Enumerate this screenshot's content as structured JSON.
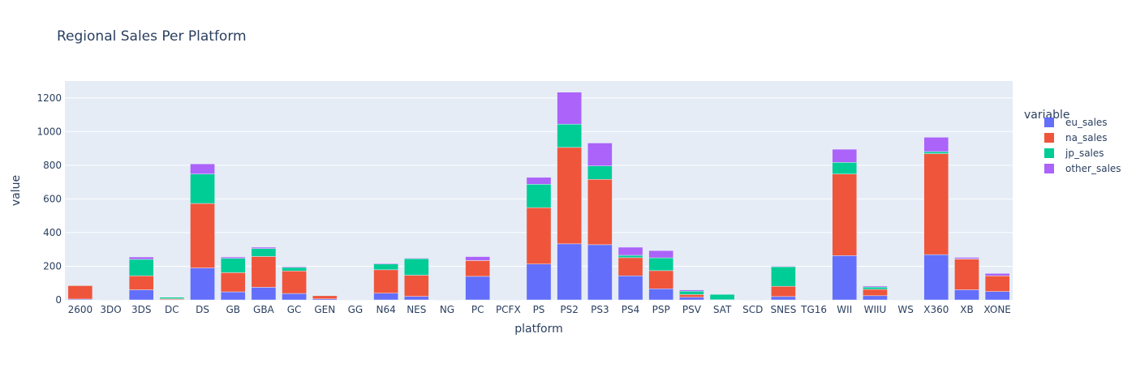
{
  "chart_data": {
    "type": "bar",
    "barmode": "stack",
    "title": "Regional Sales Per Platform",
    "xlabel": "platform",
    "ylabel": "value",
    "ylim": [
      0,
      1300
    ],
    "yticks": [
      0,
      200,
      400,
      600,
      800,
      1000,
      1200
    ],
    "grid": true,
    "legend": {
      "title": "variable",
      "position": "right"
    },
    "categories": [
      "2600",
      "3DO",
      "3DS",
      "DC",
      "DS",
      "GB",
      "GBA",
      "GC",
      "GEN",
      "GG",
      "N64",
      "NES",
      "NG",
      "PC",
      "PCFX",
      "PS",
      "PS2",
      "PS3",
      "PS4",
      "PSP",
      "PSV",
      "SAT",
      "SCD",
      "SNES",
      "TG16",
      "WII",
      "WIIU",
      "WS",
      "X360",
      "XB",
      "XONE"
    ],
    "series": [
      {
        "name": "eu_sales",
        "color": "#636efa",
        "values": [
          5,
          0.1,
          60,
          1.7,
          190,
          48,
          75,
          38,
          6,
          0,
          40,
          21,
          0.1,
          140,
          0,
          213,
          333,
          328,
          143,
          66,
          16,
          0.5,
          0.4,
          20,
          0,
          263,
          25,
          0,
          269,
          60,
          50
        ]
      },
      {
        "name": "na_sales",
        "color": "#ef553b",
        "values": [
          80,
          0,
          83,
          5.4,
          383,
          114,
          183,
          134,
          19,
          0,
          139,
          126,
          0.1,
          94,
          0,
          335,
          573,
          388,
          108,
          108,
          16,
          0.7,
          1,
          61,
          0,
          485,
          38,
          0,
          600,
          183,
          93
        ]
      },
      {
        "name": "jp_sales",
        "color": "#00cc96",
        "values": [
          0,
          0.1,
          98,
          8.6,
          175,
          85,
          47,
          21,
          2.7,
          0.04,
          34,
          98,
          1.4,
          0.2,
          0.03,
          139,
          138,
          80,
          14,
          76,
          20,
          32,
          0.5,
          116,
          0.16,
          69,
          13,
          1.4,
          12,
          1.4,
          0.3
        ]
      },
      {
        "name": "other_sales",
        "color": "#ab63fa",
        "values": [
          0.8,
          0,
          14,
          0.3,
          60,
          8,
          8,
          5,
          0.9,
          0,
          4.4,
          3.6,
          0,
          23,
          0,
          41,
          190,
          136,
          48,
          43,
          7.4,
          0.04,
          0.1,
          3.2,
          0,
          78,
          6,
          0,
          85,
          8,
          14
        ]
      }
    ]
  }
}
